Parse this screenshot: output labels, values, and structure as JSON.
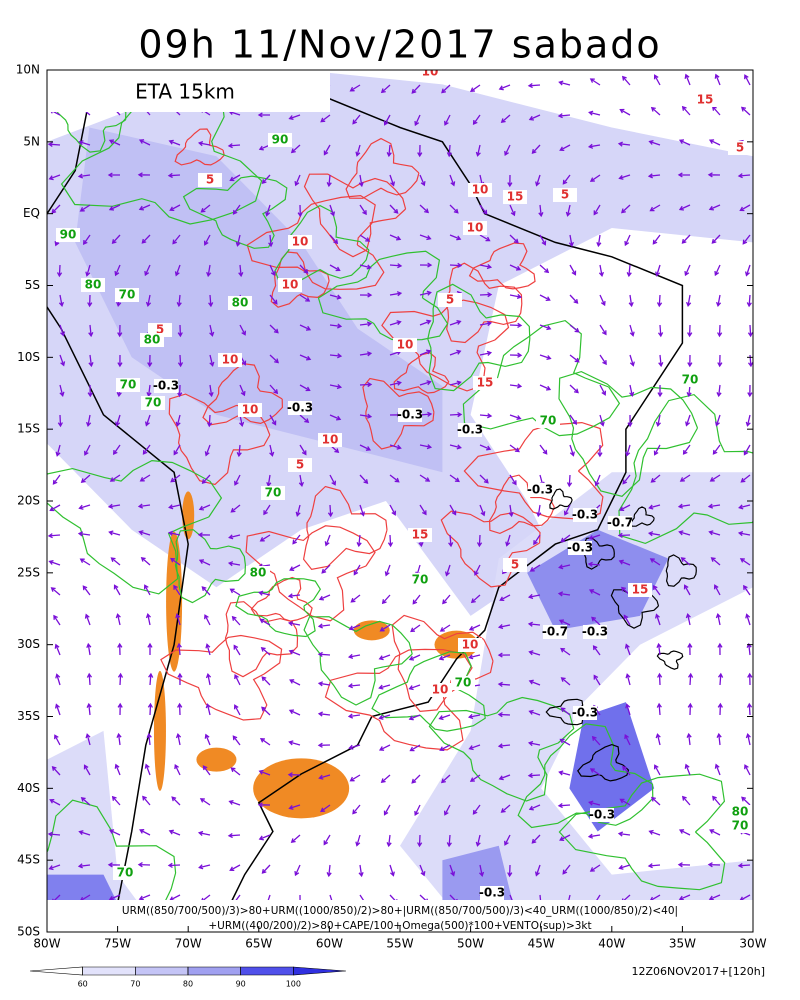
{
  "header": {
    "title": "09h 11/Nov/2017 sabado",
    "model": "ETA 15km"
  },
  "map": {
    "lat_labels": [
      "10N",
      "5N",
      "EQ",
      "5S",
      "10S",
      "15S",
      "20S",
      "25S",
      "30S",
      "35S",
      "40S",
      "45S",
      "50S"
    ],
    "lon_labels": [
      "80W",
      "75W",
      "70W",
      "65W",
      "60W",
      "55W",
      "50W",
      "45W",
      "40W",
      "35W",
      "30W"
    ],
    "contour_labels": {
      "precip": [
        "10",
        "5",
        "10",
        "10",
        "5",
        "10",
        "10",
        "15",
        "5",
        "10",
        "15",
        "10",
        "10",
        "5",
        "15",
        "10",
        "5",
        "15",
        "5",
        "10",
        "15",
        "10",
        "5"
      ],
      "humidity": [
        "90",
        "90",
        "80",
        "70",
        "80",
        "80",
        "70",
        "70",
        "70",
        "70",
        "70",
        "80",
        "70",
        "70",
        "80",
        "70",
        "70"
      ],
      "omega": [
        "-0.3",
        "-0.3",
        "-0.3",
        "-0.3",
        "-0.3",
        "-0.3",
        "-0.7",
        "-0.3",
        "-0.7",
        "-0.3",
        "-0.3",
        "-0.3",
        "-0.3"
      ]
    }
  },
  "footer": {
    "line1": "URM((850/700/500)/3)>80+URM((1000/850)/2)>80+|URM((850/700/500)/3)<40_URM((1000/850)/2)<40|",
    "line2": "+URM((400/200)/2)>80+CAPE/100+Omega(500)*100+VENTO(sup)>3kt",
    "run": "12Z06NOV2017+[120h]"
  },
  "colorbar": {
    "ticks": [
      60,
      70,
      80,
      90,
      100
    ],
    "colors": [
      "#ffffff",
      "#e2e2fb",
      "#c4c4f6",
      "#a0a0f0",
      "#5050ea",
      "#3030e0"
    ]
  }
}
